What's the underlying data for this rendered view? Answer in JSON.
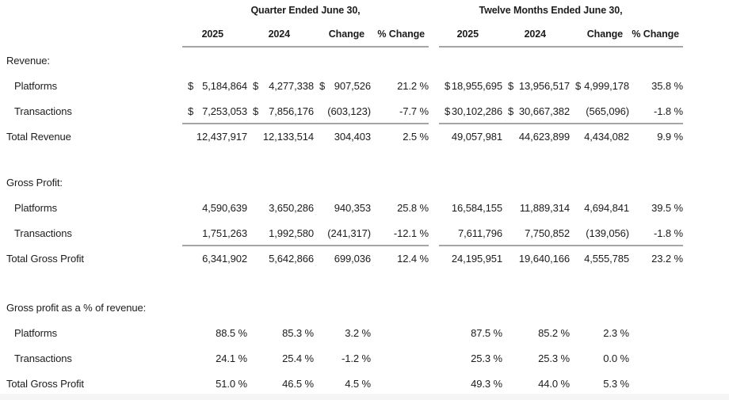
{
  "colors": {
    "text": "#1c1c1c",
    "rule": "#a5a5a5",
    "bottom_strip": "#f5f5f5"
  },
  "table": {
    "groups": [
      {
        "title": "Quarter Ended June 30,"
      },
      {
        "title": "Twelve Months Ended June 30,"
      }
    ],
    "columns": [
      "2025",
      "2024",
      "Change",
      "% Change",
      "2025",
      "2024",
      "Change",
      "% Change"
    ],
    "sections": [
      {
        "title": "Revenue:",
        "rows": [
          {
            "label": "Platforms",
            "indent": true,
            "total": false,
            "rule_above": false,
            "cells": [
              {
                "d": "$",
                "v": "5,184,864"
              },
              {
                "d": "$",
                "v": "4,277,338"
              },
              {
                "d": "$",
                "v": "907,526"
              },
              {
                "v": "21.2 %"
              },
              {
                "d": "$",
                "v": "18,955,695"
              },
              {
                "d": "$",
                "v": "13,956,517"
              },
              {
                "d": "$",
                "v": "4,999,178"
              },
              {
                "v": "35.8 %"
              }
            ]
          },
          {
            "label": "Transactions",
            "indent": true,
            "total": false,
            "rule_above": false,
            "cells": [
              {
                "d": "$",
                "v": "7,253,053"
              },
              {
                "d": "$",
                "v": "7,856,176"
              },
              {
                "v": "(603,123)"
              },
              {
                "v": "-7.7 %"
              },
              {
                "d": "$",
                "v": "30,102,286"
              },
              {
                "d": "$",
                "v": "30,667,382"
              },
              {
                "v": "(565,096)"
              },
              {
                "v": "-1.8 %"
              }
            ]
          },
          {
            "label": "Total Revenue",
            "indent": false,
            "total": true,
            "rule_above": true,
            "cells": [
              {
                "v": "12,437,917"
              },
              {
                "v": "12,133,514"
              },
              {
                "v": "304,403"
              },
              {
                "v": "2.5 %"
              },
              {
                "v": "49,057,981"
              },
              {
                "v": "44,623,899"
              },
              {
                "v": "4,434,082"
              },
              {
                "v": "9.9 %"
              }
            ]
          }
        ]
      },
      {
        "title": "Gross Profit:",
        "rows": [
          {
            "label": "Platforms",
            "indent": true,
            "total": false,
            "rule_above": false,
            "cells": [
              {
                "v": "4,590,639"
              },
              {
                "v": "3,650,286"
              },
              {
                "v": "940,353"
              },
              {
                "v": "25.8 %"
              },
              {
                "v": "16,584,155"
              },
              {
                "v": "11,889,314"
              },
              {
                "v": "4,694,841"
              },
              {
                "v": "39.5 %"
              }
            ]
          },
          {
            "label": "Transactions",
            "indent": true,
            "total": false,
            "rule_above": false,
            "cells": [
              {
                "v": "1,751,263"
              },
              {
                "v": "1,992,580"
              },
              {
                "v": "(241,317)"
              },
              {
                "v": "-12.1 %"
              },
              {
                "v": "7,611,796"
              },
              {
                "v": "7,750,852"
              },
              {
                "v": "(139,056)"
              },
              {
                "v": "-1.8 %"
              }
            ]
          },
          {
            "label": "Total Gross Profit",
            "indent": false,
            "total": true,
            "rule_above": true,
            "cells": [
              {
                "v": "6,341,902"
              },
              {
                "v": "5,642,866"
              },
              {
                "v": "699,036"
              },
              {
                "v": "12.4 %"
              },
              {
                "v": "24,195,951"
              },
              {
                "v": "19,640,166"
              },
              {
                "v": "4,555,785"
              },
              {
                "v": "23.2 %"
              }
            ]
          }
        ]
      },
      {
        "title": "Gross profit as a % of revenue:",
        "rows": [
          {
            "label": "Platforms",
            "indent": true,
            "total": false,
            "rule_above": false,
            "cells": [
              {
                "v": "88.5 %"
              },
              {
                "v": "85.3 %"
              },
              {
                "v": "3.2 %"
              },
              {
                "v": ""
              },
              {
                "v": "87.5 %"
              },
              {
                "v": "85.2 %"
              },
              {
                "v": "2.3 %"
              },
              {
                "v": ""
              }
            ]
          },
          {
            "label": "Transactions",
            "indent": true,
            "total": false,
            "rule_above": false,
            "cells": [
              {
                "v": "24.1 %"
              },
              {
                "v": "25.4 %"
              },
              {
                "v": "-1.2 %"
              },
              {
                "v": ""
              },
              {
                "v": "25.3 %"
              },
              {
                "v": "25.3 %"
              },
              {
                "v": "0.0 %"
              },
              {
                "v": ""
              }
            ]
          },
          {
            "label": "Total Gross Profit",
            "indent": false,
            "total": true,
            "rule_above": false,
            "cells": [
              {
                "v": "51.0 %"
              },
              {
                "v": "46.5 %"
              },
              {
                "v": "4.5 %"
              },
              {
                "v": ""
              },
              {
                "v": "49.3 %"
              },
              {
                "v": "44.0 %"
              },
              {
                "v": "5.3 %"
              },
              {
                "v": ""
              }
            ]
          }
        ]
      }
    ]
  }
}
